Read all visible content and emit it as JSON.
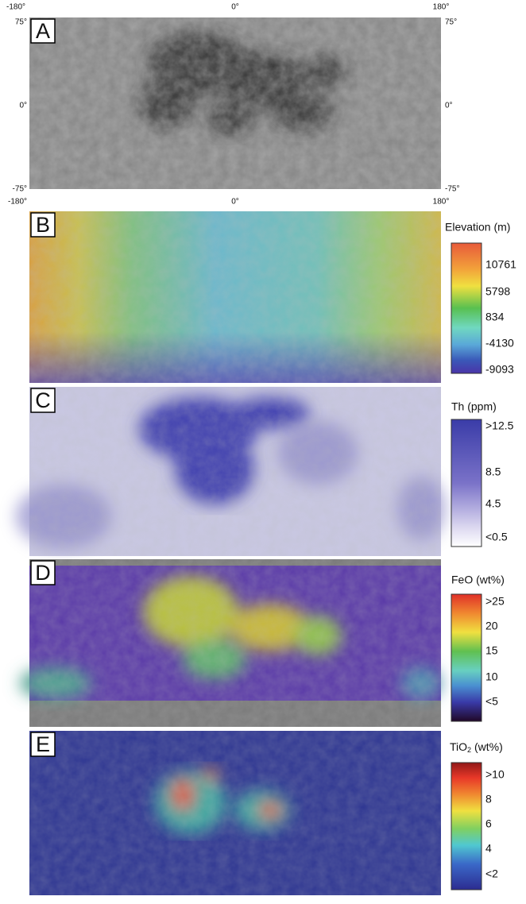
{
  "panels": [
    {
      "letter": "A",
      "top_labels": [
        "-180°",
        "0°",
        "180°"
      ],
      "left_labels": [
        "75°",
        "0°",
        "-75°"
      ],
      "right_labels": [
        "75°",
        "0°",
        "-75°"
      ],
      "bottom_labels": [
        "-180°",
        "0°",
        "180°"
      ]
    },
    {
      "letter": "B",
      "legend": {
        "title": "Elevation (m)",
        "labels": [
          "10761",
          "5798",
          "834",
          "-4130",
          "-9093"
        ]
      }
    },
    {
      "letter": "C",
      "legend": {
        "title": "Th (ppm)",
        "labels": [
          ">12.5",
          "8.5",
          "4.5",
          "<0.5"
        ]
      }
    },
    {
      "letter": "D",
      "legend": {
        "title": "FeO (wt%)",
        "labels": [
          ">25",
          "20",
          "15",
          "10",
          "<5"
        ]
      }
    },
    {
      "letter": "E",
      "legend": {
        "title_main": "TiO",
        "title_sub": "2",
        "title_unit": " (wt%)",
        "labels": [
          ">10",
          "8",
          "6",
          "4",
          "<2"
        ]
      }
    }
  ]
}
